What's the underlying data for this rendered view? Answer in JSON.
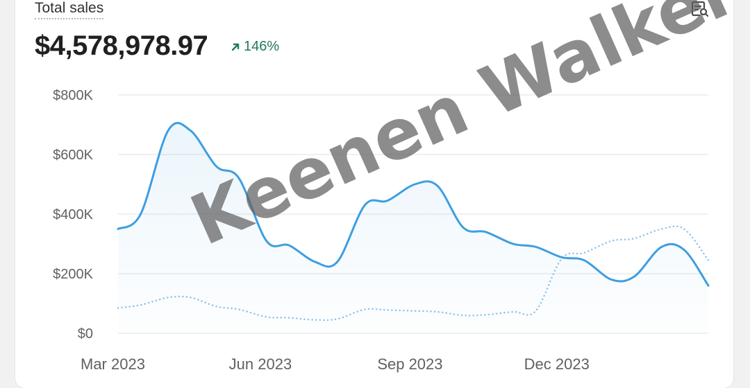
{
  "card": {
    "title": "Total sales",
    "total_value": "$4,578,978.97",
    "change_label": "146%",
    "change_direction": "up",
    "change_color": "#217a5a",
    "icon": "report-search-icon"
  },
  "watermark": "Keenen Walker",
  "chart_data": {
    "type": "line",
    "x_ticks": [
      "Mar 2023",
      "Jun 2023",
      "Sep 2023",
      "Dec 2023"
    ],
    "y_ticks": [
      "$0",
      "$200K",
      "$400K",
      "$600K",
      "$800K"
    ],
    "ylim": [
      0,
      800000
    ],
    "grid": true,
    "series": [
      {
        "style": "solid",
        "color": "#3d9ee0",
        "fill": true,
        "points": [
          [
            "2023-03-01",
            350000
          ],
          [
            "2023-03-15",
            400000
          ],
          [
            "2023-04-01",
            680000
          ],
          [
            "2023-04-15",
            680000
          ],
          [
            "2023-05-01",
            560000
          ],
          [
            "2023-05-15",
            520000
          ],
          [
            "2023-06-01",
            310000
          ],
          [
            "2023-06-15",
            295000
          ],
          [
            "2023-07-01",
            240000
          ],
          [
            "2023-07-15",
            240000
          ],
          [
            "2023-08-01",
            430000
          ],
          [
            "2023-08-15",
            445000
          ],
          [
            "2023-09-01",
            500000
          ],
          [
            "2023-09-15",
            495000
          ],
          [
            "2023-10-01",
            355000
          ],
          [
            "2023-10-15",
            340000
          ],
          [
            "2023-11-01",
            300000
          ],
          [
            "2023-11-15",
            290000
          ],
          [
            "2023-12-01",
            255000
          ],
          [
            "2023-12-15",
            245000
          ],
          [
            "2024-01-01",
            180000
          ],
          [
            "2024-01-15",
            190000
          ],
          [
            "2024-02-01",
            290000
          ],
          [
            "2024-02-15",
            280000
          ],
          [
            "2024-03-01",
            160000
          ]
        ]
      },
      {
        "style": "dotted",
        "color": "#8ec3ea",
        "fill": false,
        "points": [
          [
            "2023-03-01",
            85000
          ],
          [
            "2023-03-15",
            95000
          ],
          [
            "2023-04-01",
            120000
          ],
          [
            "2023-04-15",
            120000
          ],
          [
            "2023-05-01",
            90000
          ],
          [
            "2023-05-15",
            80000
          ],
          [
            "2023-06-01",
            55000
          ],
          [
            "2023-06-15",
            52000
          ],
          [
            "2023-07-01",
            45000
          ],
          [
            "2023-07-15",
            48000
          ],
          [
            "2023-08-01",
            80000
          ],
          [
            "2023-08-15",
            78000
          ],
          [
            "2023-09-01",
            75000
          ],
          [
            "2023-09-15",
            72000
          ],
          [
            "2023-10-01",
            60000
          ],
          [
            "2023-10-15",
            62000
          ],
          [
            "2023-11-01",
            72000
          ],
          [
            "2023-11-15",
            75000
          ],
          [
            "2023-12-01",
            250000
          ],
          [
            "2023-12-15",
            270000
          ],
          [
            "2024-01-01",
            310000
          ],
          [
            "2024-01-15",
            318000
          ],
          [
            "2024-02-01",
            350000
          ],
          [
            "2024-02-15",
            350000
          ],
          [
            "2024-03-01",
            245000
          ]
        ]
      }
    ]
  }
}
